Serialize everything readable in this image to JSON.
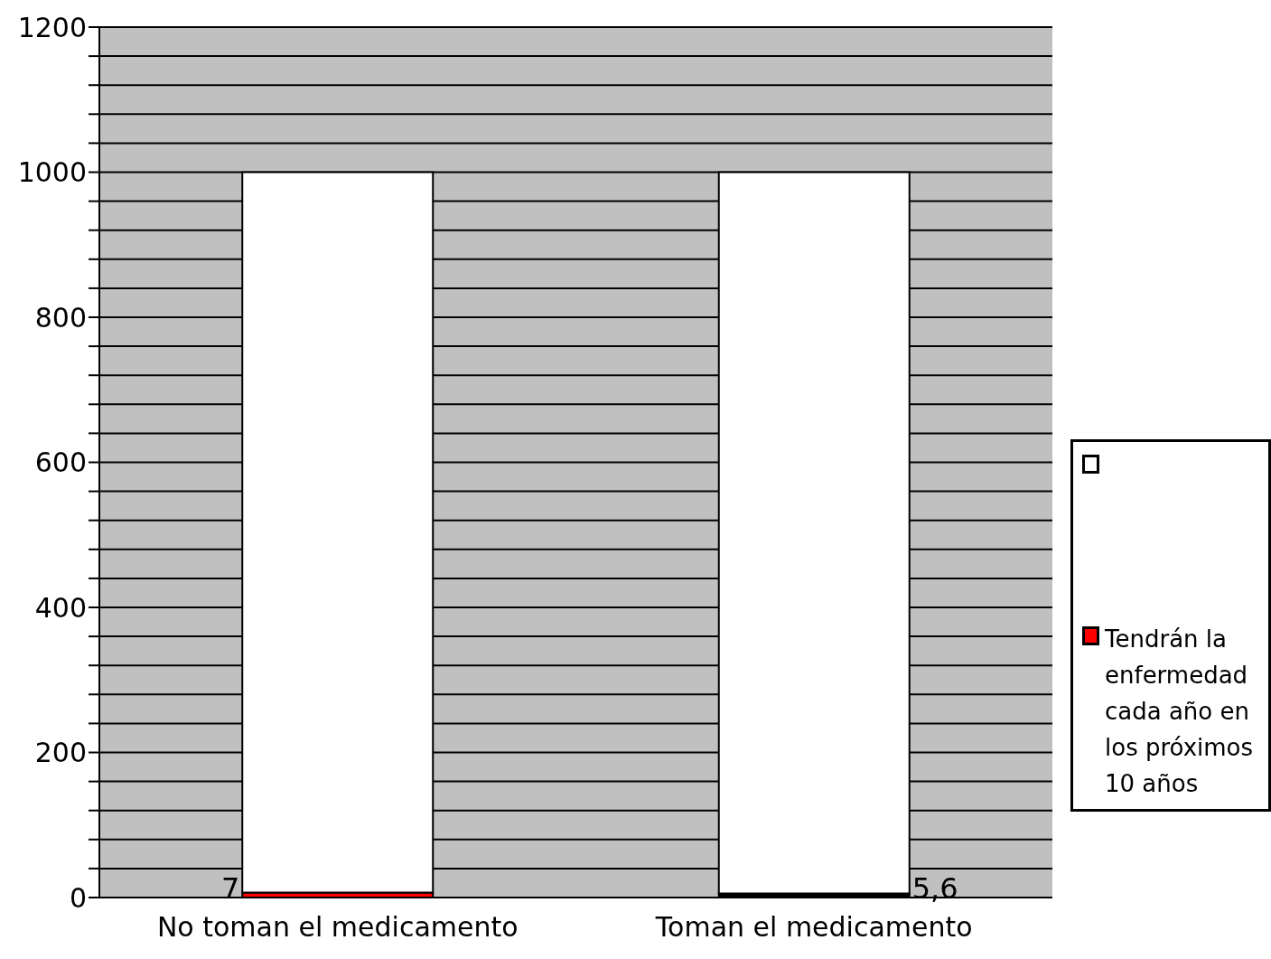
{
  "chart_data": {
    "type": "bar",
    "stacked": true,
    "categories": [
      "No toman el medicamento",
      "Toman el medicamento"
    ],
    "series": [
      {
        "name": "Tendrán la enfermedad cada año en los próximos 10 años",
        "color": "#ff0000",
        "colors": [
          "#ff0000",
          "#000000"
        ],
        "values": [
          7,
          5.6
        ],
        "value_labels": [
          "7",
          "5,6"
        ]
      },
      {
        "color": "#ffffff",
        "values": [
          993,
          994.4
        ]
      }
    ],
    "ylim": [
      0,
      1200
    ],
    "yticks": [
      0,
      {
        "value": 40,
        "label": null
      },
      {
        "value": 80,
        "label": null
      },
      {
        "value": 120,
        "label": null
      },
      {
        "value": 160,
        "label": null
      },
      200,
      {
        "value": 240,
        "label": null
      },
      {
        "value": 280,
        "label": null
      },
      {
        "value": 320,
        "label": null
      },
      {
        "value": 360,
        "label": null
      },
      400,
      {
        "value": 440,
        "label": null
      },
      {
        "value": 480,
        "label": null
      },
      {
        "value": 520,
        "label": null
      },
      {
        "value": 560,
        "label": null
      },
      600,
      {
        "value": 640,
        "label": null
      },
      {
        "value": 680,
        "label": null
      },
      {
        "value": 720,
        "label": null
      },
      {
        "value": 760,
        "label": null
      },
      800,
      {
        "value": 840,
        "label": null
      },
      {
        "value": 880,
        "label": null
      },
      {
        "value": 920,
        "label": null
      },
      {
        "value": 960,
        "label": null
      },
      1000,
      {
        "value": 1040,
        "label": null
      },
      {
        "value": 1080,
        "label": null
      },
      {
        "value": 1120,
        "label": null
      },
      {
        "value": 1160,
        "label": null
      },
      1200
    ],
    "grid": "y",
    "legend": "right"
  }
}
